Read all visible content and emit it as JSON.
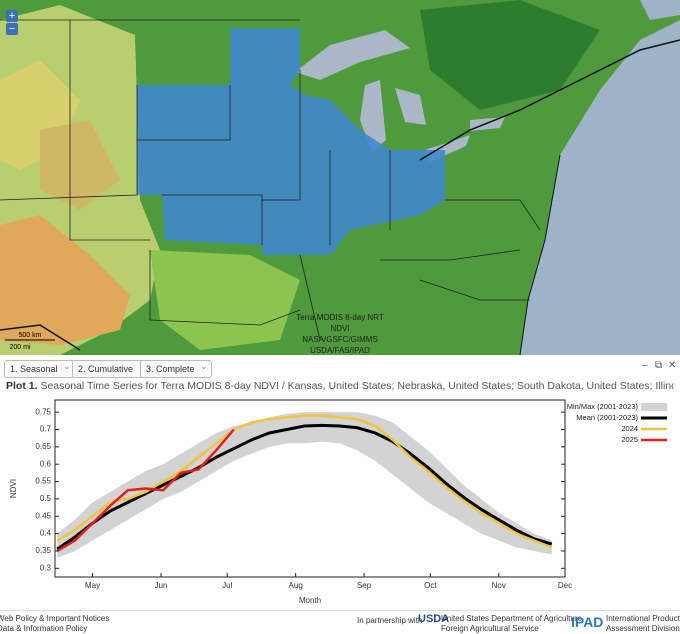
{
  "map": {
    "zoom_in": "+",
    "zoom_out": "−",
    "scale_km": "500 km",
    "scale_mi": "200 mi",
    "overlay": [
      "Terra MODIS 8-day NRT",
      "NDVI",
      "NASA/GSFC/GIMMS",
      "USDA/FAS/IPAD"
    ]
  },
  "toolbar": {
    "tabs": [
      "1. Seasonal",
      "2. Cumulative",
      "3. Complete"
    ]
  },
  "plot": {
    "label": "Plot 1.",
    "title": "Seasonal Time Series for Terra MODIS 8-day NDVI / Kansas, United States; Nebraska, United States; South Dakota, United States; Illinois, United States; Indiana, …"
  },
  "chart_data": {
    "type": "line",
    "xlabel": "Month",
    "ylabel": "NDVI",
    "xlim": [
      104,
      335
    ],
    "ylim": [
      0.275,
      0.785
    ],
    "xticks": [
      {
        "value": 121,
        "label": "May"
      },
      {
        "value": 152,
        "label": "Jun"
      },
      {
        "value": 182,
        "label": "Jul"
      },
      {
        "value": 213,
        "label": "Aug"
      },
      {
        "value": 244,
        "label": "Sep"
      },
      {
        "value": 274,
        "label": "Oct"
      },
      {
        "value": 305,
        "label": "Nov"
      },
      {
        "value": 335,
        "label": "Dec"
      }
    ],
    "yticks": [
      0.3,
      0.35,
      0.4,
      0.45,
      0.5,
      0.55,
      0.6,
      0.65,
      0.7,
      0.75
    ],
    "x": [
      105,
      113,
      121,
      129,
      137,
      145,
      153,
      161,
      169,
      177,
      185,
      193,
      201,
      209,
      217,
      225,
      233,
      241,
      249,
      257,
      265,
      273,
      281,
      289,
      297,
      305,
      313,
      321,
      329
    ],
    "band": {
      "name": "Min/Max (2001-2023)",
      "color": "#d3d3d3",
      "max": [
        0.4,
        0.44,
        0.49,
        0.52,
        0.55,
        0.58,
        0.6,
        0.63,
        0.66,
        0.69,
        0.71,
        0.72,
        0.735,
        0.745,
        0.75,
        0.75,
        0.75,
        0.75,
        0.74,
        0.72,
        0.68,
        0.64,
        0.59,
        0.54,
        0.5,
        0.46,
        0.43,
        0.4,
        0.38
      ],
      "min": [
        0.33,
        0.35,
        0.38,
        0.41,
        0.44,
        0.47,
        0.5,
        0.52,
        0.55,
        0.58,
        0.61,
        0.63,
        0.65,
        0.66,
        0.66,
        0.665,
        0.66,
        0.64,
        0.61,
        0.57,
        0.53,
        0.49,
        0.46,
        0.43,
        0.4,
        0.38,
        0.36,
        0.35,
        0.34
      ]
    },
    "series": [
      {
        "name": "Mean (2001-2023)",
        "color": "#000000",
        "width": 3,
        "values": [
          0.355,
          0.39,
          0.43,
          0.465,
          0.49,
          0.515,
          0.54,
          0.565,
          0.59,
          0.62,
          0.645,
          0.67,
          0.69,
          0.7,
          0.71,
          0.712,
          0.71,
          0.705,
          0.69,
          0.665,
          0.63,
          0.59,
          0.545,
          0.505,
          0.47,
          0.44,
          0.41,
          0.385,
          0.37
        ]
      },
      {
        "name": "2024",
        "color": "#f2c33c",
        "width": 2.5,
        "values": [
          0.38,
          0.41,
          0.45,
          0.49,
          0.5,
          0.52,
          0.55,
          0.58,
          0.62,
          0.66,
          0.7,
          0.72,
          0.73,
          0.735,
          0.74,
          0.74,
          0.735,
          0.73,
          0.71,
          0.67,
          0.62,
          0.58,
          0.535,
          0.495,
          0.46,
          0.43,
          0.4,
          0.38,
          0.36
        ]
      },
      {
        "name": "2025",
        "color": "#e0201b",
        "width": 2.5,
        "values": [
          0.35,
          0.38,
          0.43,
          0.48,
          0.525,
          0.53,
          0.525,
          0.575,
          0.585,
          0.64,
          0.7,
          null,
          null,
          null,
          null,
          null,
          null,
          null,
          null,
          null,
          null,
          null,
          null,
          null,
          null,
          null,
          null,
          null,
          null
        ]
      }
    ]
  },
  "footer": {
    "links": [
      "Web Policy & Important Notices",
      "Data & Information Policy"
    ],
    "partnership": "In partnership with",
    "usda": "USDA",
    "usda_lines": [
      "United States Department of Agriculture",
      "Foreign Agricultural Service"
    ],
    "ipad": "IPAD",
    "ipad_lines": [
      "International Production",
      "Assessment Division"
    ]
  }
}
